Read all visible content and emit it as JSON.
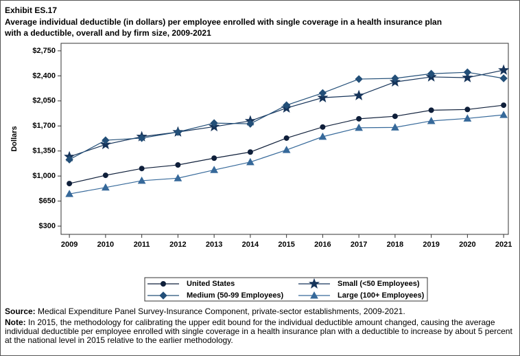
{
  "chart_data": {
    "type": "line",
    "exhibit": "Exhibit ES.17",
    "title": [
      "Average individual deductible (in dollars) per employee enrolled with single coverage in a health insurance plan",
      "with a deductible, overall and by firm size, 2009-2021"
    ],
    "y_label": "Dollars",
    "x": [
      2009,
      2010,
      2011,
      2012,
      2013,
      2014,
      2015,
      2016,
      2017,
      2018,
      2019,
      2020,
      2021
    ],
    "xlim": [
      2008.77,
      2021.13
    ],
    "xticks": [
      2009,
      2010,
      2011,
      2012,
      2013,
      2014,
      2015,
      2016,
      2017,
      2018,
      2019,
      2020,
      2021
    ],
    "ylim": [
      185,
      2855
    ],
    "yticks": [
      {
        "value": 300,
        "label": "$300"
      },
      {
        "value": 650,
        "label": "$650"
      },
      {
        "value": 1000,
        "label": "$1,000"
      },
      {
        "value": 1350,
        "label": "$1,350"
      },
      {
        "value": 1700,
        "label": "$1,700"
      },
      {
        "value": 2050,
        "label": "$2,050"
      },
      {
        "value": 2400,
        "label": "$2,400"
      },
      {
        "value": 2750,
        "label": "$2,750"
      }
    ],
    "series": [
      {
        "name": "United States",
        "color": "#0f1f3a",
        "marker": "circle",
        "values": [
          895,
          1010,
          1105,
          1155,
          1250,
          1335,
          1530,
          1685,
          1800,
          1835,
          1920,
          1930,
          1990
        ]
      },
      {
        "name": "Small (<50 Employees)",
        "color": "#16345a",
        "marker": "star",
        "values": [
          1270,
          1440,
          1550,
          1615,
          1690,
          1770,
          1950,
          2095,
          2125,
          2315,
          2385,
          2375,
          2480
        ]
      },
      {
        "name": "Medium (50-99 Employees)",
        "color": "#234f78",
        "marker": "diamond",
        "values": [
          1230,
          1500,
          1530,
          1615,
          1740,
          1730,
          1990,
          2160,
          2355,
          2365,
          2430,
          2450,
          2365
        ]
      },
      {
        "name": "Large (100+ Employees)",
        "color": "#36699a",
        "marker": "triangle",
        "values": [
          750,
          840,
          935,
          970,
          1085,
          1195,
          1365,
          1550,
          1675,
          1680,
          1770,
          1805,
          1855
        ]
      }
    ],
    "source_label": "Source:",
    "source": "Medical Expenditure Panel Survey-Insurance Component, private-sector establishments, 2009-2021.",
    "note_label": "Note:",
    "note": "In 2015, the methodology for calibrating the upper edit bound for the individual deductible amount changed, causing the average individual deductible per employee enrolled with single coverage in a health insurance plan with a deductible to increase by about 5 percent at the national level in 2015 relative to the earlier methodology."
  }
}
